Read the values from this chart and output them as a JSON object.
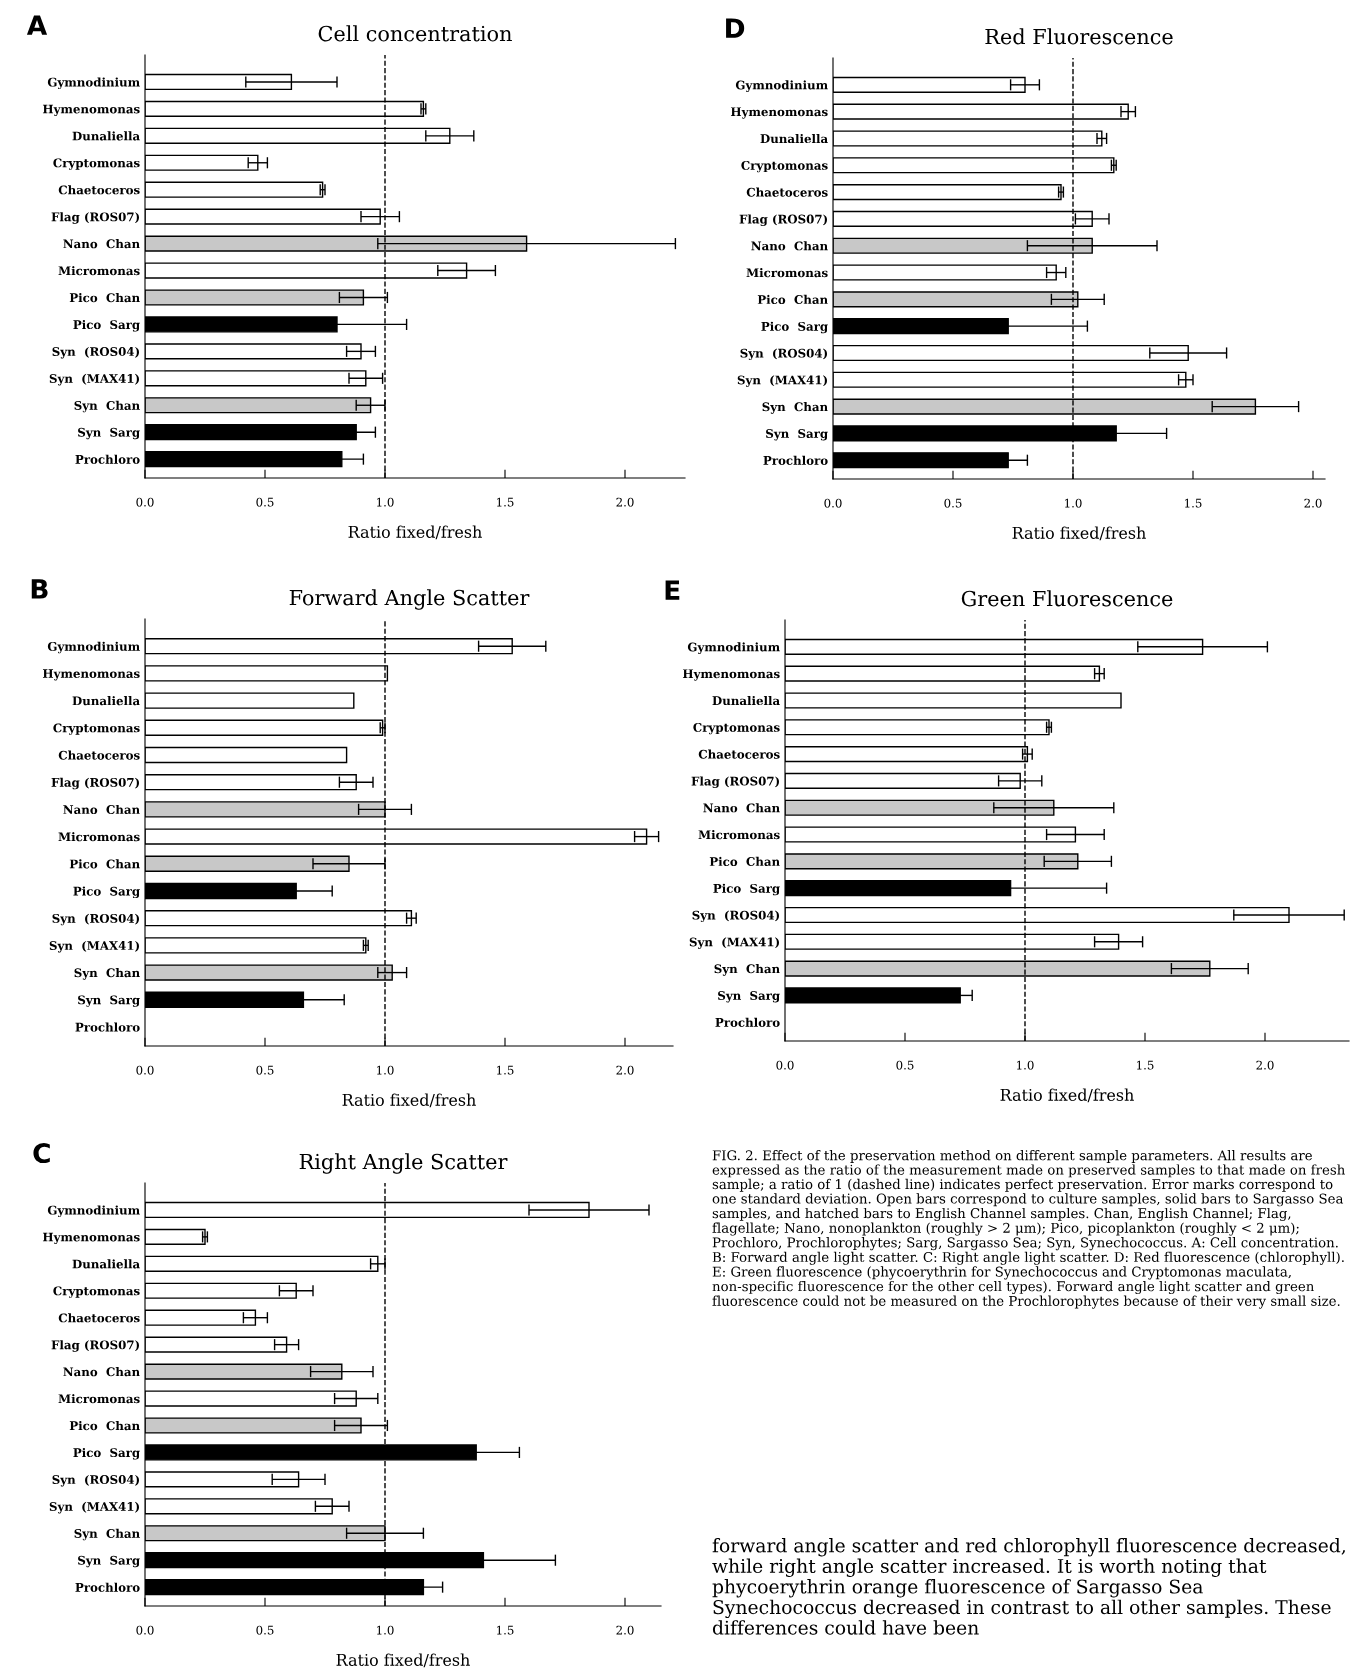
{
  "chart_data": [
    {
      "type": "bar",
      "orientation": "horizontal",
      "title": "Cell concentration",
      "xlabel": "Ratio fixed/fresh",
      "annotations": [
        "A"
      ],
      "categories": [
        "Gymnodinium",
        "Hymenomonas",
        "Dunaliella",
        "Cryptomonas",
        "Chaetoceros",
        "Flag (ROS07)",
        "Nano  Chan",
        "Micromonas",
        "Pico  Chan",
        "Pico  Sarg",
        "Syn  (ROS04)",
        "Syn  (MAX41)",
        "Syn  Chan",
        "Syn  Sarg",
        "Prochloro"
      ],
      "values": [
        0.61,
        1.16,
        1.27,
        0.47,
        0.74,
        0.98,
        1.59,
        1.34,
        0.91,
        0.8,
        0.9,
        0.92,
        0.94,
        0.88,
        0.82
      ],
      "errors": [
        0.19,
        0.01,
        0.1,
        0.04,
        0.01,
        0.08,
        0.62,
        0.12,
        0.1,
        0.29,
        0.06,
        0.07,
        0.06,
        0.08,
        0.09
      ],
      "colors": [
        "#ffffff",
        "#ffffff",
        "#ffffff",
        "#ffffff",
        "#ffffff",
        "#ffffff",
        "#c8c8c8",
        "#ffffff",
        "#c8c8c8",
        "#000000",
        "#ffffff",
        "#ffffff",
        "#c8c8c8",
        "#000000",
        "#000000"
      ],
      "xlim": [
        0,
        2.25
      ],
      "xticks": [
        {
          "value": 0,
          "label": "0.0"
        },
        {
          "value": 0.5,
          "label": "0.5"
        },
        {
          "value": 1,
          "label": "1.0"
        },
        {
          "value": 1.5,
          "label": "1.5"
        },
        {
          "value": 2,
          "label": "2.0"
        }
      ],
      "ref_lines": [
        {
          "axis": "x",
          "value": 1,
          "line_style": "dashed"
        }
      ]
    },
    {
      "type": "bar",
      "orientation": "horizontal",
      "title": "Forward Angle Scatter",
      "xlabel": "Ratio fixed/fresh",
      "annotations": [
        "B"
      ],
      "categories": [
        "Gymnodinium",
        "Hymenomonas",
        "Dunaliella",
        "Cryptomonas",
        "Chaetoceros",
        "Flag (ROS07)",
        "Nano  Chan",
        "Micromonas",
        "Pico  Chan",
        "Pico  Sarg",
        "Syn  (ROS04)",
        "Syn  (MAX41)",
        "Syn  Chan",
        "Syn  Sarg",
        "Prochloro"
      ],
      "values": [
        1.53,
        1.01,
        0.87,
        0.99,
        0.84,
        0.88,
        1.0,
        2.09,
        0.85,
        0.63,
        1.11,
        0.92,
        1.03,
        0.66,
        null
      ],
      "errors": [
        0.14,
        null,
        null,
        0.01,
        null,
        0.07,
        0.11,
        0.05,
        0.15,
        0.15,
        0.02,
        0.01,
        0.06,
        0.17,
        null
      ],
      "colors": [
        "#ffffff",
        "#ffffff",
        "#ffffff",
        "#ffffff",
        "#ffffff",
        "#ffffff",
        "#c8c8c8",
        "#ffffff",
        "#c8c8c8",
        "#000000",
        "#ffffff",
        "#ffffff",
        "#c8c8c8",
        "#000000",
        "#000000"
      ],
      "xlim": [
        0,
        2.2
      ],
      "xticks": [
        {
          "value": 0,
          "label": "0.0"
        },
        {
          "value": 0.5,
          "label": "0.5"
        },
        {
          "value": 1,
          "label": "1.0"
        },
        {
          "value": 1.5,
          "label": "1.5"
        },
        {
          "value": 2,
          "label": "2.0"
        }
      ],
      "ref_lines": [
        {
          "axis": "x",
          "value": 1,
          "line_style": "dashed"
        }
      ]
    },
    {
      "type": "bar",
      "orientation": "horizontal",
      "title": "Right Angle Scatter",
      "xlabel": "Ratio fixed/fresh",
      "annotations": [
        "C"
      ],
      "categories": [
        "Gymnodinium",
        "Hymenomonas",
        "Dunaliella",
        "Cryptomonas",
        "Chaetoceros",
        "Flag (ROS07)",
        "Nano  Chan",
        "Micromonas",
        "Pico  Chan",
        "Pico  Sarg",
        "Syn  (ROS04)",
        "Syn  (MAX41)",
        "Syn  Chan",
        "Syn  Sarg",
        "Prochloro"
      ],
      "values": [
        1.85,
        0.25,
        0.97,
        0.63,
        0.46,
        0.59,
        0.82,
        0.88,
        0.9,
        1.38,
        0.64,
        0.78,
        1.0,
        1.41,
        1.16
      ],
      "errors": [
        0.25,
        0.01,
        0.03,
        0.07,
        0.05,
        0.05,
        0.13,
        0.09,
        0.11,
        0.18,
        0.11,
        0.07,
        0.16,
        0.3,
        0.08
      ],
      "colors": [
        "#ffffff",
        "#ffffff",
        "#ffffff",
        "#ffffff",
        "#ffffff",
        "#ffffff",
        "#c8c8c8",
        "#ffffff",
        "#c8c8c8",
        "#000000",
        "#ffffff",
        "#ffffff",
        "#c8c8c8",
        "#000000",
        "#000000"
      ],
      "xlim": [
        0,
        2.15
      ],
      "xticks": [
        {
          "value": 0,
          "label": "0.0"
        },
        {
          "value": 0.5,
          "label": "0.5"
        },
        {
          "value": 1,
          "label": "1.0"
        },
        {
          "value": 1.5,
          "label": "1.5"
        },
        {
          "value": 2,
          "label": "2.0"
        }
      ],
      "ref_lines": [
        {
          "axis": "x",
          "value": 1,
          "line_style": "dashed"
        }
      ]
    },
    {
      "type": "bar",
      "orientation": "horizontal",
      "title": "Red Fluorescence",
      "xlabel": "Ratio fixed/fresh",
      "annotations": [
        "D"
      ],
      "categories": [
        "Gymnodinium",
        "Hymenomonas",
        "Dunaliella",
        "Cryptomonas",
        "Chaetoceros",
        "Flag (ROS07)",
        "Nano  Chan",
        "Micromonas",
        "Pico  Chan",
        "Pico  Sarg",
        "Syn  (ROS04)",
        "Syn  (MAX41)",
        "Syn  Chan",
        "Syn  Sarg",
        "Prochloro"
      ],
      "values": [
        0.8,
        1.23,
        1.12,
        1.17,
        0.95,
        1.08,
        1.08,
        0.93,
        1.02,
        0.73,
        1.48,
        1.47,
        1.76,
        1.18,
        0.73
      ],
      "errors": [
        0.06,
        0.03,
        0.02,
        0.01,
        0.01,
        0.07,
        0.27,
        0.04,
        0.11,
        0.33,
        0.16,
        0.03,
        0.18,
        0.21,
        0.08
      ],
      "colors": [
        "#ffffff",
        "#ffffff",
        "#ffffff",
        "#ffffff",
        "#ffffff",
        "#ffffff",
        "#c8c8c8",
        "#ffffff",
        "#c8c8c8",
        "#000000",
        "#ffffff",
        "#ffffff",
        "#c8c8c8",
        "#000000",
        "#000000"
      ],
      "xlim": [
        0,
        2.05
      ],
      "xticks": [
        {
          "value": 0,
          "label": "0.0"
        },
        {
          "value": 0.5,
          "label": "0.5"
        },
        {
          "value": 1,
          "label": "1.0"
        },
        {
          "value": 1.5,
          "label": "1.5"
        },
        {
          "value": 2,
          "label": "2.0"
        }
      ],
      "ref_lines": [
        {
          "axis": "x",
          "value": 1,
          "line_style": "dashed"
        }
      ]
    },
    {
      "type": "bar",
      "orientation": "horizontal",
      "title": "Green Fluorescence",
      "xlabel": "Ratio fixed/fresh",
      "annotations": [
        "E"
      ],
      "categories": [
        "Gymnodinium",
        "Hymenomonas",
        "Dunaliella",
        "Cryptomonas",
        "Chaetoceros",
        "Flag (ROS07)",
        "Nano  Chan",
        "Micromonas",
        "Pico  Chan",
        "Pico  Sarg",
        "Syn  (ROS04)",
        "Syn  (MAX41)",
        "Syn  Chan",
        "Syn  Sarg",
        "Prochloro"
      ],
      "values": [
        1.74,
        1.31,
        1.4,
        1.1,
        1.01,
        0.98,
        1.12,
        1.21,
        1.22,
        0.94,
        2.1,
        1.39,
        1.77,
        0.73,
        null
      ],
      "errors": [
        0.27,
        0.02,
        null,
        0.01,
        0.02,
        0.09,
        0.25,
        0.12,
        0.14,
        0.4,
        0.23,
        0.1,
        0.16,
        0.05,
        null
      ],
      "colors": [
        "#ffffff",
        "#ffffff",
        "#ffffff",
        "#ffffff",
        "#ffffff",
        "#ffffff",
        "#c8c8c8",
        "#ffffff",
        "#c8c8c8",
        "#000000",
        "#ffffff",
        "#ffffff",
        "#c8c8c8",
        "#000000",
        "#000000"
      ],
      "xlim": [
        0,
        2.35
      ],
      "xticks": [
        {
          "value": 0,
          "label": "0.0"
        },
        {
          "value": 0.5,
          "label": "0.5"
        },
        {
          "value": 1,
          "label": "1.0"
        },
        {
          "value": 1.5,
          "label": "1.5"
        },
        {
          "value": 2,
          "label": "2.0"
        }
      ],
      "ref_lines": [
        {
          "axis": "x",
          "value": 1,
          "line_style": "dashed"
        }
      ]
    },
    {
      "type": "other",
      "annotations": [
        "FIG. 2. Effect of the preservation method on different sample parameters. All results are expressed as the ratio of the measurement made on preserved samples to that made on fresh sample; a ratio of 1 (dashed line) indicates perfect preservation. Error marks correspond to one standard deviation. Open bars correspond to culture samples, solid bars to Sargasso Sea samples, and hatched bars to English Channel samples. Chan, English Channel; Flag, flagellate; Nano, nonoplankton (roughly > 2 μm); Pico, picoplankton (roughly < 2 μm); Prochloro, Prochlorophytes; Sarg, Sargasso Sea; Syn, Synechococcus. A: Cell concentration. B: Forward angle light scatter. C: Right angle light scatter. D: Red fluorescence (chlorophyll). E: Green fluorescence (phycoerythrin for Synechococcus and Cryptomonas maculata, non-specific fluorescence for the other cell types). Forward angle light scatter and green fluorescence could not be measured on the Prochlorophytes because of their very small size.",
        "forward angle scatter and red chlorophyll fluorescence decreased, while right angle scatter increased. It is worth noting that phycoerythrin orange fluorescence of Sargasso Sea Synechococcus decreased in contrast to all other samples. These differences could have been"
      ]
    }
  ]
}
